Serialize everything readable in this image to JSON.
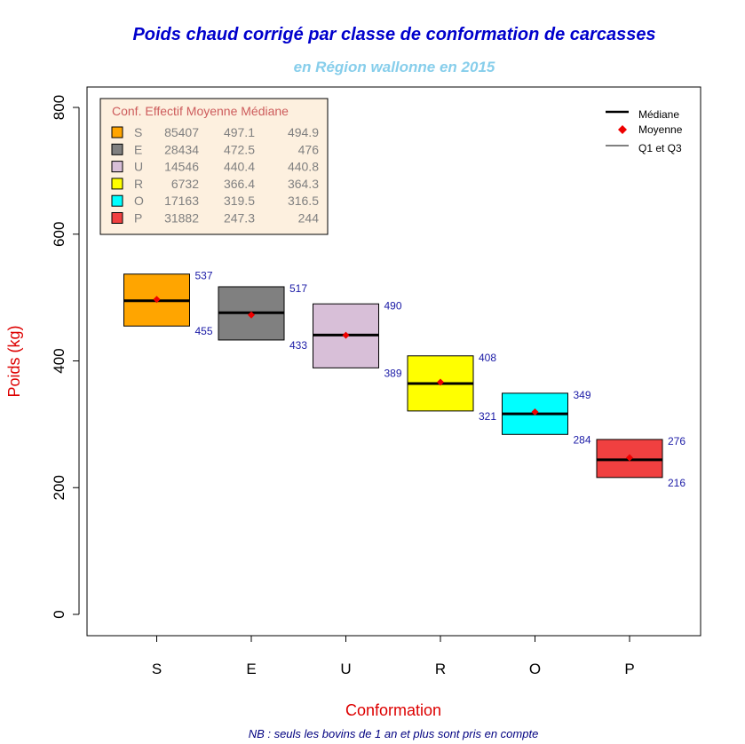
{
  "title": "Poids chaud corrigé par classe de conformation de carcasses",
  "subtitle": "en Région wallonne en 2015",
  "note": "NB : seuls les bovins de 1 an et plus sont pris en compte",
  "colors": {
    "title": "#0000cc",
    "subtitle": "#87ceeb",
    "axis_label": "#dd0000",
    "note": "#000080",
    "quartile_label": "#1a1aa6",
    "mean_marker": "#ee0000",
    "stats_header": "#cd5c5c",
    "stats_text": "#808080",
    "stats_bg": "#fdf0df"
  },
  "chart_data": {
    "type": "box",
    "xlabel": "Conformation",
    "ylabel": "Poids (kg)",
    "ylim": [
      0,
      800
    ],
    "yticks": [
      0,
      200,
      400,
      600,
      800
    ],
    "categories": [
      "S",
      "E",
      "U",
      "R",
      "O",
      "P"
    ],
    "box_colors": [
      "#ffa500",
      "#808080",
      "#d8bfd8",
      "#ffff00",
      "#00ffff",
      "#f04040"
    ],
    "q1": [
      455,
      433,
      389,
      321,
      284,
      216
    ],
    "q3": [
      537,
      517,
      490,
      408,
      349,
      276
    ],
    "median": [
      494.9,
      476,
      440.8,
      364.3,
      316.5,
      244
    ],
    "mean": [
      497.1,
      472.5,
      440.4,
      366.4,
      319.5,
      247.3
    ],
    "q1_labels": [
      "455",
      "433",
      "389",
      "321",
      "284",
      "216"
    ],
    "q3_labels": [
      "537",
      "517",
      "490",
      "408",
      "349",
      "276"
    ],
    "legend": {
      "position": "top-right",
      "items": [
        "Médiane",
        "Moyenne",
        "Q1 et Q3"
      ]
    },
    "stats_table": {
      "position": "top-left",
      "header": "Conf. Effectif Moyenne Médiane",
      "rows": [
        {
          "conf": "S",
          "effectif": "85407",
          "moyenne": "497.1",
          "mediane": "494.9"
        },
        {
          "conf": "E",
          "effectif": "28434",
          "moyenne": "472.5",
          "mediane": "476"
        },
        {
          "conf": "U",
          "effectif": "14546",
          "moyenne": "440.4",
          "mediane": "440.8"
        },
        {
          "conf": "R",
          "effectif": "6732",
          "moyenne": "366.4",
          "mediane": "364.3"
        },
        {
          "conf": "O",
          "effectif": "17163",
          "moyenne": "319.5",
          "mediane": "316.5"
        },
        {
          "conf": "P",
          "effectif": "31882",
          "moyenne": "247.3",
          "mediane": "244"
        }
      ]
    }
  }
}
